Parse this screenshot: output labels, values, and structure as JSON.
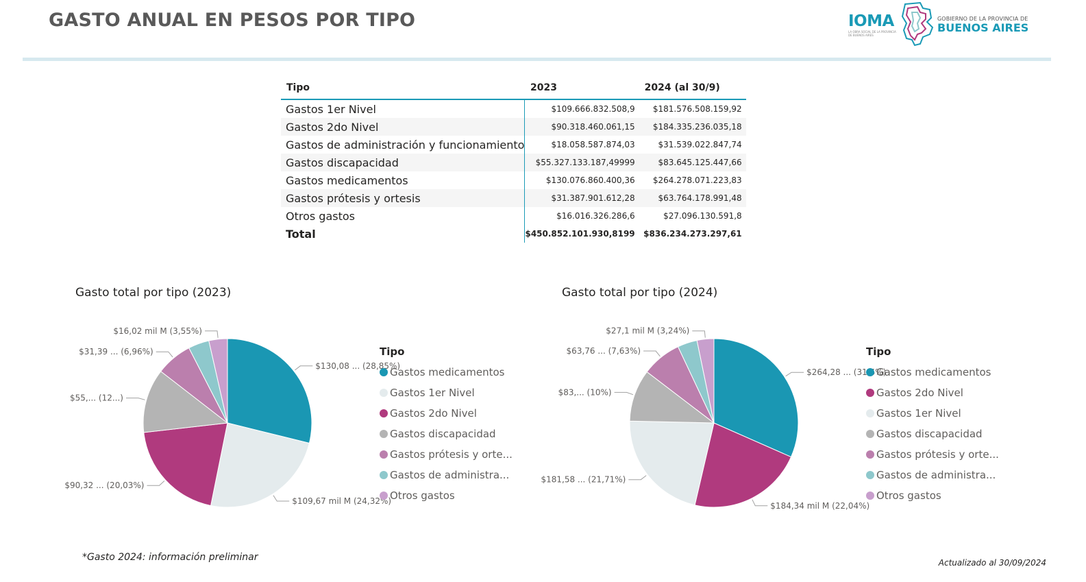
{
  "header": {
    "title": "GASTO ANUAL EN PESOS POR TIPO",
    "logo_ioma": "IOMA",
    "logo_ioma_tag": "LA OBRA SOCIAL DE LA PROVINCIA DE BUENOS AIRES",
    "logo_gba_small": "GOBIERNO DE LA PROVINCIA DE",
    "logo_gba_big": "BUENOS AIRES"
  },
  "table": {
    "headers": [
      "Tipo",
      "2023",
      "2024 (al 30/9)"
    ],
    "rows": [
      {
        "tipo": "Gastos 1er Nivel",
        "y2023": "$109.666.832.508,9",
        "y2024": "$181.576.508.159,92"
      },
      {
        "tipo": "Gastos 2do Nivel",
        "y2023": "$90.318.460.061,15",
        "y2024": "$184.335.236.035,18"
      },
      {
        "tipo": "Gastos de administración y funcionamiento",
        "y2023": "$18.058.587.874,03",
        "y2024": "$31.539.022.847,74"
      },
      {
        "tipo": "Gastos discapacidad",
        "y2023": "$55.327.133.187,49999",
        "y2024": "$83.645.125.447,66"
      },
      {
        "tipo": "Gastos medicamentos",
        "y2023": "$130.076.860.400,36",
        "y2024": "$264.278.071.223,83"
      },
      {
        "tipo": "Gastos prótesis y ortesis",
        "y2023": "$31.387.901.612,28",
        "y2024": "$63.764.178.991,48"
      },
      {
        "tipo": "Otros gastos",
        "y2023": "$16.016.326.286,6",
        "y2024": "$27.096.130.591,8"
      }
    ],
    "total": {
      "tipo": "Total",
      "y2023": "$450.852.101.930,8199",
      "y2024": "$836.234.273.297,61"
    }
  },
  "colors": {
    "medicamentos": "#1a97b3",
    "primer_nivel": "#e4ebed",
    "segundo_nivel": "#b03a7e",
    "discapacidad": "#b4b4b4",
    "protesis": "#bb7fad",
    "administracion": "#8ec8cc",
    "otros": "#c89fcd"
  },
  "chart_data": [
    {
      "type": "pie",
      "title": "Gasto total por tipo (2023)",
      "legend_title": "Tipo",
      "legend_placement": "right",
      "slices": [
        {
          "name": "Gastos medicamentos",
          "legend": "Gastos medicamentos",
          "value": 130076860400.36,
          "label": "$130,08 ... (28,85%)",
          "color": "#1a97b3"
        },
        {
          "name": "Gastos 1er Nivel",
          "legend": "Gastos 1er Nivel",
          "value": 109666832508.9,
          "label": "$109,67 mil M (24,32%)",
          "color": "#e4ebed"
        },
        {
          "name": "Gastos 2do Nivel",
          "legend": "Gastos 2do Nivel",
          "value": 90318460061.15,
          "label": "$90,32 ... (20,03%)",
          "color": "#b03a7e"
        },
        {
          "name": "Gastos discapacidad",
          "legend": "Gastos discapacidad",
          "value": 55327133187.5,
          "label": "$55,... (12...)",
          "color": "#b4b4b4"
        },
        {
          "name": "Gastos prótesis y ortesis",
          "legend": "Gastos prótesis y orte...",
          "value": 31387901612.28,
          "label": "$31,39 ... (6,96%)",
          "color": "#bb7fad"
        },
        {
          "name": "Gastos de administración y funcionamiento",
          "legend": "Gastos de administra...",
          "value": 18058587874.03,
          "label": "",
          "color": "#8ec8cc"
        },
        {
          "name": "Otros gastos",
          "legend": "Otros gastos",
          "value": 16016326286.6,
          "label": "$16,02 mil M (3,55%)",
          "color": "#c89fcd"
        }
      ]
    },
    {
      "type": "pie",
      "title": "Gasto total por tipo (2024)",
      "legend_title": "Tipo",
      "legend_placement": "right",
      "slices": [
        {
          "name": "Gastos medicamentos",
          "legend": "Gastos medicamentos",
          "value": 264278071223.83,
          "label": "$264,28 ... (31,6%)",
          "color": "#1a97b3"
        },
        {
          "name": "Gastos 2do Nivel",
          "legend": "Gastos 2do Nivel",
          "value": 184335236035.18,
          "label": "$184,34 mil M (22,04%)",
          "color": "#b03a7e"
        },
        {
          "name": "Gastos 1er Nivel",
          "legend": "Gastos 1er Nivel",
          "value": 181576508159.92,
          "label": "$181,58 ... (21,71%)",
          "color": "#e4ebed"
        },
        {
          "name": "Gastos discapacidad",
          "legend": "Gastos discapacidad",
          "value": 83645125447.66,
          "label": "$83,... (10%)",
          "color": "#b4b4b4"
        },
        {
          "name": "Gastos prótesis y ortesis",
          "legend": "Gastos prótesis y orte...",
          "value": 63764178991.48,
          "label": "$63,76 ... (7,63%)",
          "color": "#bb7fad"
        },
        {
          "name": "Gastos de administración y funcionamiento",
          "legend": "Gastos de administra...",
          "value": 31539022847.74,
          "label": "",
          "color": "#8ec8cc"
        },
        {
          "name": "Otros gastos",
          "legend": "Otros gastos",
          "value": 27096130591.8,
          "label": "$27,1 mil M (3,24%)",
          "color": "#c89fcd"
        }
      ]
    }
  ],
  "footnote": "*Gasto 2024: información preliminar",
  "updated": "Actualizado al 30/09/2024"
}
